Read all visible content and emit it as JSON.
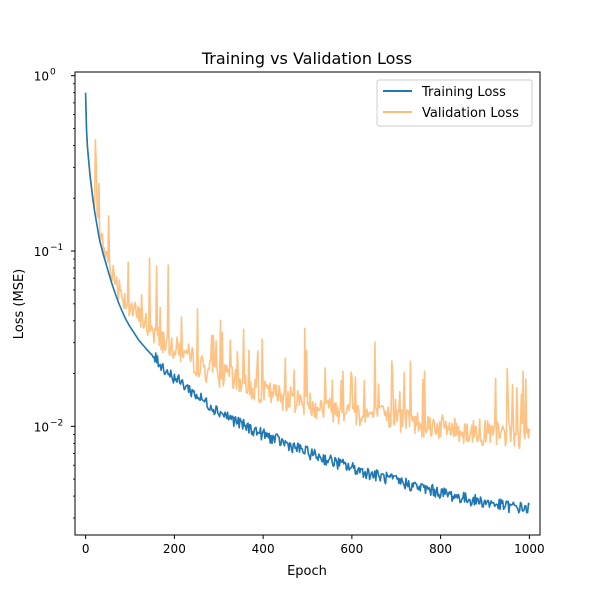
{
  "chart_data": {
    "type": "line",
    "title": "Training vs Validation Loss",
    "xlabel": "Epoch",
    "ylabel": "Loss (MSE)",
    "xlim": [
      -24,
      1024
    ],
    "ylim": [
      0.0024,
      1.05
    ],
    "y_scale": "log",
    "grid": false,
    "legend_position": "top-right",
    "x_ticks": [
      0,
      200,
      400,
      600,
      800,
      1000
    ],
    "x_tick_labels": [
      "0",
      "200",
      "400",
      "600",
      "800",
      "1000"
    ],
    "y_ticks": [
      0.01,
      0.1,
      1
    ],
    "y_tick_labels": [
      "10",
      "10",
      "10"
    ],
    "y_tick_exponents": [
      "−2",
      "−1",
      "0"
    ],
    "series": [
      {
        "name": "Training Loss",
        "color": "#1f77b4",
        "x": [
          0,
          1,
          2,
          3,
          5,
          10,
          15,
          20,
          30,
          40,
          50,
          60,
          75,
          90,
          100,
          120,
          140,
          160,
          180,
          200,
          225,
          250,
          275,
          300,
          350,
          400,
          450,
          500,
          550,
          600,
          650,
          700,
          750,
          800,
          850,
          900,
          950,
          1000
        ],
        "values": [
          0.8,
          0.58,
          0.5,
          0.43,
          0.37,
          0.27,
          0.21,
          0.17,
          0.12,
          0.095,
          0.078,
          0.064,
          0.05,
          0.041,
          0.037,
          0.031,
          0.027,
          0.024,
          0.021,
          0.019,
          0.017,
          0.015,
          0.0135,
          0.0122,
          0.0103,
          0.009,
          0.008,
          0.0071,
          0.0064,
          0.0058,
          0.0053,
          0.0049,
          0.0045,
          0.0042,
          0.0039,
          0.0037,
          0.0035,
          0.0034
        ]
      },
      {
        "name": "Validation Loss",
        "color": "#ffbb78",
        "x": [
          0,
          1,
          2,
          3,
          5,
          10,
          15,
          20,
          30,
          40,
          50,
          60,
          75,
          90,
          100,
          120,
          140,
          160,
          180,
          200,
          225,
          250,
          275,
          300,
          350,
          400,
          450,
          500,
          550,
          600,
          650,
          700,
          750,
          800,
          850,
          900,
          950,
          1000
        ],
        "values": [
          0.75,
          0.6,
          0.48,
          0.42,
          0.36,
          0.26,
          0.21,
          0.17,
          0.125,
          0.1,
          0.085,
          0.072,
          0.06,
          0.05,
          0.046,
          0.04,
          0.036,
          0.032,
          0.029,
          0.027,
          0.025,
          0.022,
          0.02,
          0.019,
          0.017,
          0.015,
          0.014,
          0.013,
          0.012,
          0.0115,
          0.011,
          0.0105,
          0.01,
          0.0095,
          0.009,
          0.0088,
          0.0086,
          0.0085
        ]
      }
    ]
  }
}
